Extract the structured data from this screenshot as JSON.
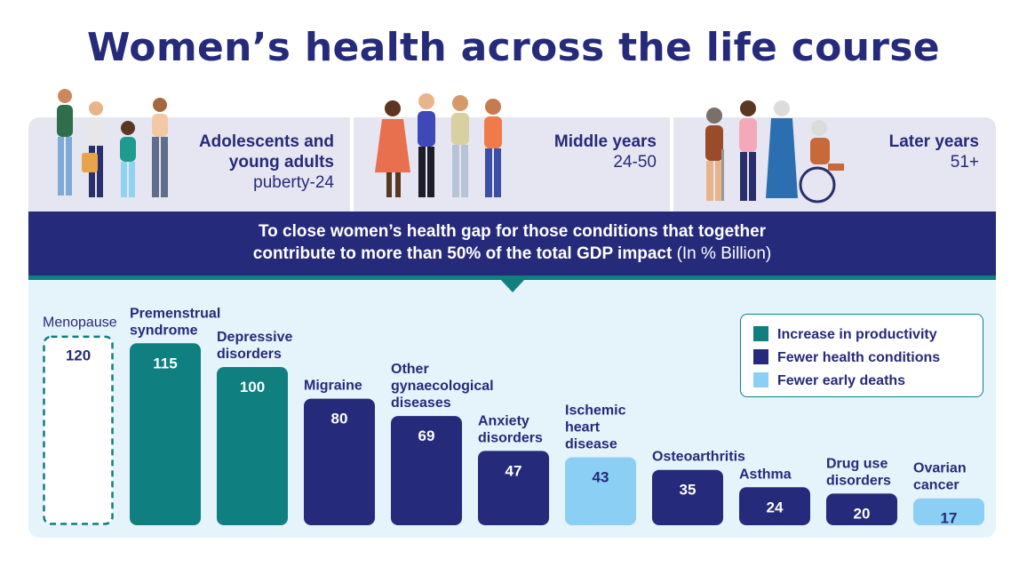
{
  "title": "Women’s health across the life course",
  "stages": [
    {
      "name_line1": "Adolescents and",
      "name_line2": "young adults",
      "ages": "puberty-24"
    },
    {
      "name_line1": "Middle years",
      "ages": "24-50"
    },
    {
      "name_line1": "Later years",
      "ages": "51+"
    }
  ],
  "banner": {
    "line1": "To close women’s health gap for those conditions that together",
    "line2_bold": "contribute to more than 50% of the total GDP impact",
    "line2_rest": " (In % Billion)"
  },
  "colors": {
    "navy": "#262a7a",
    "teal": "#0f7f7f",
    "light_blue": "#8ccff5",
    "banner": "#262a7a"
  },
  "legend": [
    {
      "label": "Increase in productivity",
      "color": "#0f7f7f"
    },
    {
      "label": "Fewer health conditions",
      "color": "#262a7a"
    },
    {
      "label": "Fewer early deaths",
      "color": "#8ccff5"
    }
  ],
  "chart_data": {
    "type": "bar",
    "title": "To close women’s health gap for those conditions that together contribute to more than 50% of the total GDP impact (In % Billion)",
    "categories": [
      "Menopause",
      "Premenstrual syndrome",
      "Depressive disorders",
      "Migraine",
      "Other gynaecological diseases",
      "Anxiety disorders",
      "Ischemic heart disease",
      "Osteoarthritis",
      "Asthma",
      "Drug use disorders",
      "Ovarian cancer"
    ],
    "label_lines": [
      [
        "Menopause"
      ],
      [
        "Premenstrual",
        "syndrome"
      ],
      [
        "Depressive",
        "disorders"
      ],
      [
        "Migraine"
      ],
      [
        "Other",
        "gynaecological",
        "diseases"
      ],
      [
        "Anxiety",
        "disorders"
      ],
      [
        "Ischemic",
        "heart",
        "disease"
      ],
      [
        "Osteoarthritis"
      ],
      [
        "Asthma"
      ],
      [
        "Drug use",
        "disorders"
      ],
      [
        "Ovarian",
        "cancer"
      ]
    ],
    "values": [
      120,
      115,
      100,
      80,
      69,
      47,
      43,
      35,
      24,
      20,
      17
    ],
    "category_type": [
      "outline",
      "productivity",
      "productivity",
      "health",
      "health",
      "health",
      "deaths",
      "health",
      "health",
      "health",
      "deaths"
    ],
    "ylim": [
      0,
      120
    ],
    "xlabel": "",
    "ylabel": ""
  }
}
